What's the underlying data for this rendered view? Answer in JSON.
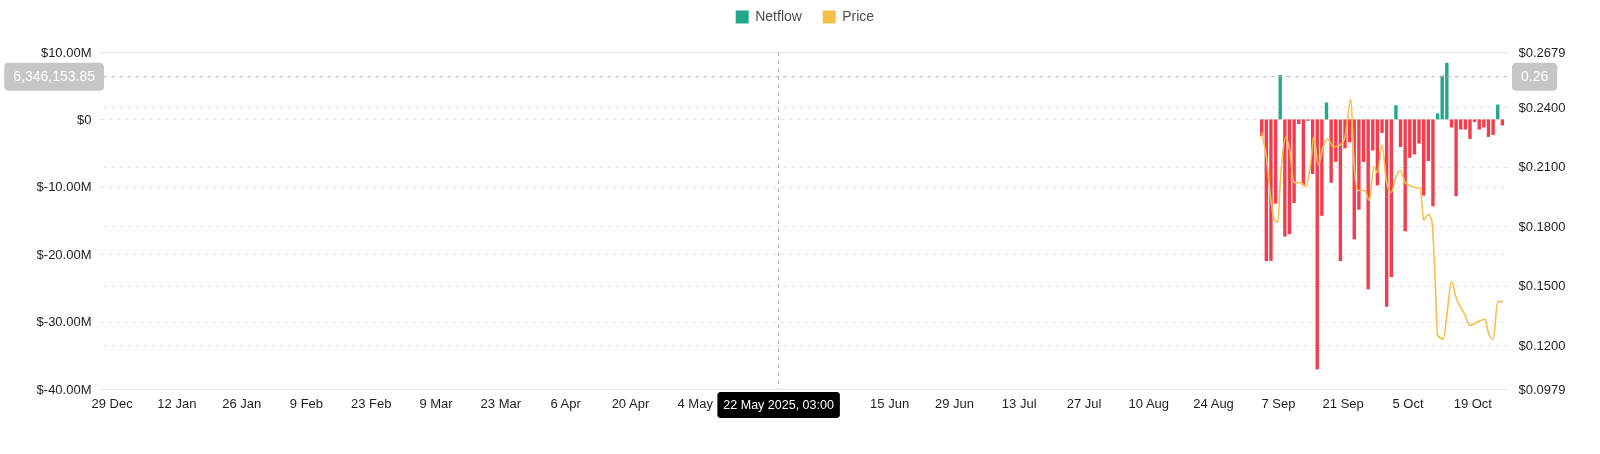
{
  "chart_data": {
    "type": "bar",
    "legend": "top",
    "grid": "y",
    "xlim": [
      "2024-12-26T12:00",
      "2025-10-26T12:00"
    ],
    "xticks": [
      {
        "value": "2024-12-29",
        "label": "29 Dec"
      },
      {
        "value": "2025-01-12",
        "label": "12 Jan"
      },
      {
        "value": "2025-01-26",
        "label": "26 Jan"
      },
      {
        "value": "2025-02-09",
        "label": "9 Feb"
      },
      {
        "value": "2025-02-23",
        "label": "23 Feb"
      },
      {
        "value": "2025-03-09",
        "label": "9 Mar"
      },
      {
        "value": "2025-03-23",
        "label": "23 Mar"
      },
      {
        "value": "2025-04-06",
        "label": "6 Apr"
      },
      {
        "value": "2025-04-20",
        "label": "20 Apr"
      },
      {
        "value": "2025-05-04",
        "label": "4 May"
      },
      {
        "value": "2025-06-15",
        "label": "15 Jun"
      },
      {
        "value": "2025-06-29",
        "label": "29 Jun"
      },
      {
        "value": "2025-07-13",
        "label": "13 Jul"
      },
      {
        "value": "2025-07-27",
        "label": "27 Jul"
      },
      {
        "value": "2025-08-10",
        "label": "10 Aug"
      },
      {
        "value": "2025-08-24",
        "label": "24 Aug"
      },
      {
        "value": "2025-09-07",
        "label": "7 Sep"
      },
      {
        "value": "2025-09-21",
        "label": "21 Sep"
      },
      {
        "value": "2025-10-05",
        "label": "5 Oct"
      },
      {
        "value": "2025-10-19",
        "label": "19 Oct"
      }
    ],
    "ylim": [
      -40000000,
      10000000
    ],
    "yticks": [
      {
        "value": 10000000,
        "label": "$10.00M"
      },
      {
        "value": 0,
        "label": "$0"
      },
      {
        "value": -10000000,
        "label": "$-10.00M"
      },
      {
        "value": -20000000,
        "label": "$-20.00M"
      },
      {
        "value": -30000000,
        "label": "$-30.00M"
      },
      {
        "value": -40000000,
        "label": "$-40.00M"
      }
    ],
    "y2lim": [
      0.0979,
      0.2679
    ],
    "y2ticks": [
      {
        "value": 0.2679,
        "label": "$0.2679"
      },
      {
        "value": 0.24,
        "label": "$0.2400"
      },
      {
        "value": 0.21,
        "label": "$0.2100"
      },
      {
        "value": 0.18,
        "label": "$0.1800"
      },
      {
        "value": 0.15,
        "label": "$0.1500"
      },
      {
        "value": 0.12,
        "label": "$0.1200"
      },
      {
        "value": 0.0979,
        "label": "$0.0979"
      }
    ],
    "ref_lines": [
      {
        "axis": "x",
        "value": "2025-05-22T03:00",
        "label": "22 May 2025, 03:00",
        "color": "#b5b5b5",
        "line_style": "dashed"
      },
      {
        "axis": "y",
        "value": 6346153.85,
        "label": "6,346,153.85",
        "color": "#b5b5b5",
        "line_style": "dashed"
      }
    ],
    "annotations": [
      "0.26"
    ],
    "series": [
      {
        "name": "Netflow",
        "color": "#22a98c",
        "x": [
          "2025-09-03T12:00",
          "2025-09-04T12:00",
          "2025-09-05T12:00",
          "2025-09-06T12:00",
          "2025-09-07T12:00",
          "2025-09-08T12:00",
          "2025-09-09T12:00",
          "2025-09-10T12:00",
          "2025-09-11T12:00",
          "2025-09-12T12:00",
          "2025-09-13T12:00",
          "2025-09-14T12:00",
          "2025-09-15T12:00",
          "2025-09-16T12:00",
          "2025-09-17T12:00",
          "2025-09-18T12:00",
          "2025-09-19T12:00",
          "2025-09-20T12:00",
          "2025-09-21T12:00",
          "2025-09-22T12:00",
          "2025-09-23T12:00",
          "2025-09-24T12:00",
          "2025-09-25T12:00",
          "2025-09-26T12:00",
          "2025-09-27T12:00",
          "2025-09-28T12:00",
          "2025-09-29T12:00",
          "2025-09-30T12:00",
          "2025-10-01T12:00",
          "2025-10-02T12:00",
          "2025-10-03T12:00",
          "2025-10-04T12:00",
          "2025-10-05T12:00",
          "2025-10-06T12:00",
          "2025-10-07T12:00",
          "2025-10-08T12:00",
          "2025-10-09T12:00",
          "2025-10-10T12:00",
          "2025-10-11T12:00",
          "2025-10-12T12:00",
          "2025-10-13T12:00",
          "2025-10-14T12:00",
          "2025-10-15T12:00",
          "2025-10-16T12:00",
          "2025-10-17T12:00",
          "2025-10-18T12:00",
          "2025-10-19T12:00",
          "2025-10-20T12:00",
          "2025-10-21T12:00",
          "2025-10-22T12:00",
          "2025-10-23T12:00",
          "2025-10-24T12:00",
          "2025-10-25T12:00"
        ],
        "values": [
          -2500000,
          -21000000,
          -21000000,
          -12500000,
          6600000,
          -17400000,
          -17000000,
          -12400000,
          -700000,
          -9800000,
          -200000,
          -8100000,
          -37100000,
          -14300000,
          2500000,
          -9400000,
          -6300000,
          -21000000,
          -4300000,
          -3400000,
          -17800000,
          -13400000,
          -6300000,
          -25200000,
          -4600000,
          -9800000,
          -2000000,
          -27800000,
          -23400000,
          2100000,
          -4100000,
          -16600000,
          -5700000,
          -5200000,
          -3600000,
          -11300000,
          -6200000,
          -12900000,
          900000,
          6500000,
          8400000,
          -1200000,
          -11400000,
          -1500000,
          -1500000,
          -2900000,
          -400000,
          -1500000,
          -1200000,
          -2600000,
          -2300000,
          2200000,
          -900000
        ],
        "colors": [
          "#f23d4f",
          "#f23d4f",
          "#f23d4f",
          "#f23d4f",
          "#22a98c",
          "#f23d4f",
          "#f23d4f",
          "#f23d4f",
          "#f23d4f",
          "#f23d4f",
          "#f23d4f",
          "#f23d4f",
          "#f23d4f",
          "#f23d4f",
          "#22a98c",
          "#f23d4f",
          "#f23d4f",
          "#f23d4f",
          "#f23d4f",
          "#f23d4f",
          "#f23d4f",
          "#f23d4f",
          "#f23d4f",
          "#f23d4f",
          "#f23d4f",
          "#f23d4f",
          "#f23d4f",
          "#f23d4f",
          "#f23d4f",
          "#22a98c",
          "#f23d4f",
          "#f23d4f",
          "#f23d4f",
          "#f23d4f",
          "#f23d4f",
          "#f23d4f",
          "#f23d4f",
          "#f23d4f",
          "#22a98c",
          "#22a98c",
          "#22a98c",
          "#f23d4f",
          "#f23d4f",
          "#f23d4f",
          "#f23d4f",
          "#f23d4f",
          "#f23d4f",
          "#f23d4f",
          "#f23d4f",
          "#f23d4f",
          "#f23d4f",
          "#22a98c",
          "#f23d4f"
        ]
      },
      {
        "name": "Price",
        "type": "line",
        "axis": "y2",
        "color": "#f5c04a",
        "x": [
          "2025-09-03T12:00",
          "2025-09-04T12:00",
          "2025-09-05T12:00",
          "2025-09-06T06:00",
          "2025-09-07",
          "2025-09-07T12:00",
          "2025-09-08T18:00",
          "2025-09-09T12:00",
          "2025-09-10T12:00",
          "2025-09-12",
          "2025-09-13",
          "2025-09-14",
          "2025-09-14T18:00",
          "2025-09-15T18:00",
          "2025-09-16T18:00",
          "2025-09-17T18:00",
          "2025-09-19",
          "2025-09-20T12:00",
          "2025-09-21T12:00",
          "2025-09-22T18:00",
          "2025-09-23T12:00",
          "2025-09-24T06:00",
          "2025-09-25T18:00",
          "2025-09-26T18:00",
          "2025-09-27T18:00",
          "2025-09-28T12:00",
          "2025-09-29T12:00",
          "2025-09-30T12:00",
          "2025-10-01T12:00",
          "2025-10-02T12:00",
          "2025-10-03T12:00",
          "2025-10-04T12:00",
          "2025-10-06",
          "2025-10-07T18:00",
          "2025-10-08T12:00",
          "2025-10-09T12:00",
          "2025-10-10T06:00",
          "2025-10-11",
          "2025-10-11T12:00",
          "2025-10-12T18:00",
          "2025-10-13T12:00",
          "2025-10-14T12:00",
          "2025-10-15T12:00",
          "2025-10-17T06:00",
          "2025-10-18T12:00",
          "2025-10-20T06:00",
          "2025-10-21T18:00",
          "2025-10-22T12:00",
          "2025-10-23T12:00",
          "2025-10-24T12:00",
          "2025-10-25T12:00"
        ],
        "values": [
          0.227,
          0.215,
          0.193,
          0.183,
          0.182,
          0.202,
          0.225,
          0.219,
          0.202,
          0.202,
          0.2,
          0.21,
          0.225,
          0.211,
          0.22,
          0.224,
          0.22,
          0.221,
          0.225,
          0.244,
          0.21,
          0.198,
          0.198,
          0.193,
          0.21,
          0.207,
          0.221,
          0.202,
          0.197,
          0.205,
          0.208,
          0.202,
          0.2,
          0.199,
          0.183,
          0.186,
          0.183,
          0.151,
          0.125,
          0.123,
          0.135,
          0.152,
          0.144,
          0.136,
          0.13,
          0.132,
          0.133,
          0.126,
          0.123,
          0.142,
          0.142
        ]
      }
    ]
  }
}
